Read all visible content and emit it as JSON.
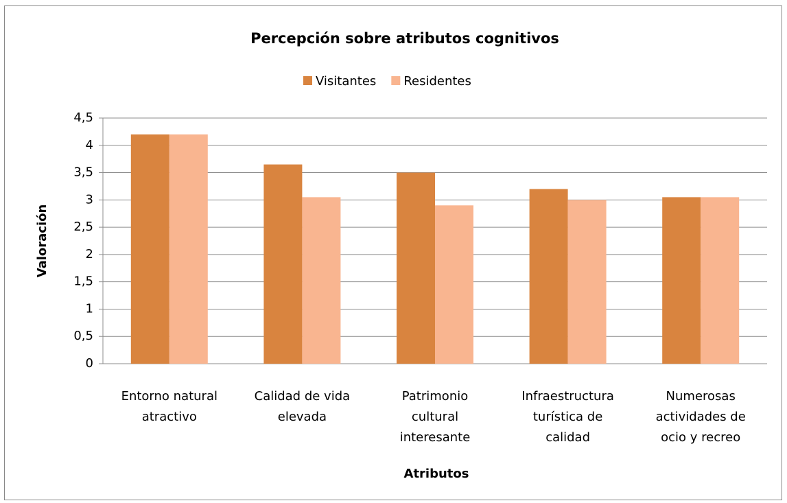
{
  "chart_data": {
    "type": "bar",
    "title": "Percepción sobre atributos cognitivos",
    "x_label": "Atributos",
    "y_label": "Valoración",
    "categories": [
      "Entorno natural atractivo",
      "Calidad de vida elevada",
      "Patrimonio cultural interesante",
      "Infraestructura turística de calidad",
      "Numerosas actividades de ocio y recreo"
    ],
    "series": [
      {
        "name": "Visitantes",
        "color": "#d9843f",
        "values": [
          4.2,
          3.65,
          3.5,
          3.2,
          3.05
        ]
      },
      {
        "name": "Residentes",
        "color": "#f9b590",
        "values": [
          4.2,
          3.05,
          2.9,
          3.0,
          3.05
        ]
      }
    ],
    "ylim": [
      0,
      4.5
    ],
    "yticks": [
      0,
      {
        "value": 0.5,
        "label": "0,5"
      },
      1,
      {
        "value": 1.5,
        "label": "1,5"
      },
      2,
      {
        "value": 2.5,
        "label": "2,5"
      },
      3,
      {
        "value": 3.5,
        "label": "3,5"
      },
      4,
      {
        "value": 4.5,
        "label": "4,5"
      }
    ],
    "grid": true,
    "legend": "top"
  }
}
